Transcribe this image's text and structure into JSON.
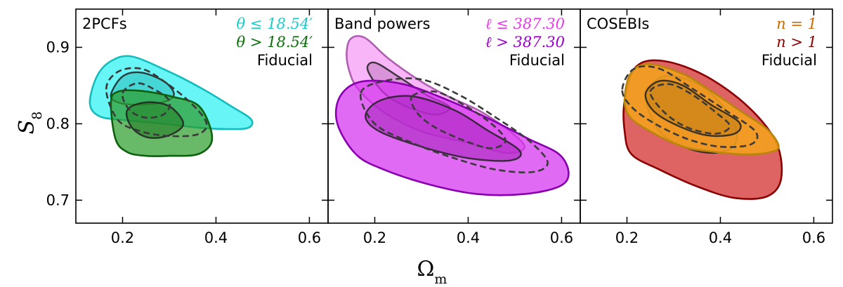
{
  "chart_data": {
    "type": "contour",
    "xlabel": "Ω",
    "xlabel_sub": "m",
    "ylabel": "S",
    "ylabel_sub": "8",
    "xlim": [
      0.1,
      0.64
    ],
    "ylim": [
      0.67,
      0.95
    ],
    "xticks": [
      0.2,
      0.4,
      0.6
    ],
    "xtick_labels": [
      "0.2",
      "0.4",
      "0.6"
    ],
    "yticks": [
      0.7,
      0.8,
      0.9
    ],
    "ytick_labels": [
      "0.7",
      "0.8",
      "0.9"
    ],
    "panels": [
      {
        "title": "2PCFs",
        "legend": [
          {
            "label": "θ ≤ 18.54′",
            "color": "#1bc9c9"
          },
          {
            "label": "θ > 18.54′",
            "color": "#0b6e0b"
          },
          {
            "label": "Fiducial",
            "color": "#000000"
          }
        ],
        "contours": [
          {
            "name": "theta-le-18.54",
            "fill": "#3ef2f2",
            "edge": "#15bcbc",
            "fill_opacity": 0.78,
            "outer": [
              [
                0.13,
                0.827
              ],
              [
                0.145,
                0.862
              ],
              [
                0.175,
                0.882
              ],
              [
                0.22,
                0.888
              ],
              [
                0.3,
                0.868
              ],
              [
                0.37,
                0.846
              ],
              [
                0.435,
                0.822
              ],
              [
                0.475,
                0.806
              ],
              [
                0.47,
                0.795
              ],
              [
                0.43,
                0.793
              ],
              [
                0.36,
                0.795
              ],
              [
                0.29,
                0.8
              ],
              [
                0.2,
                0.805
              ],
              [
                0.15,
                0.81
              ]
            ],
            "inner": [
              [
                0.175,
                0.838
              ],
              [
                0.2,
                0.862
              ],
              [
                0.24,
                0.867
              ],
              [
                0.29,
                0.855
              ],
              [
                0.31,
                0.838
              ],
              [
                0.285,
                0.828
              ],
              [
                0.23,
                0.825
              ],
              [
                0.19,
                0.828
              ]
            ]
          },
          {
            "name": "theta-gt-18.54",
            "fill": "#2e9e2e",
            "edge": "#0d600d",
            "fill_opacity": 0.72,
            "outer": [
              [
                0.175,
                0.828
              ],
              [
                0.185,
                0.78
              ],
              [
                0.21,
                0.763
              ],
              [
                0.25,
                0.758
              ],
              [
                0.3,
                0.758
              ],
              [
                0.36,
                0.76
              ],
              [
                0.39,
                0.775
              ],
              [
                0.385,
                0.8
              ],
              [
                0.36,
                0.825
              ],
              [
                0.31,
                0.835
              ],
              [
                0.24,
                0.843
              ],
              [
                0.19,
                0.842
              ]
            ],
            "inner": [
              [
                0.21,
                0.818
              ],
              [
                0.22,
                0.795
              ],
              [
                0.255,
                0.782
              ],
              [
                0.3,
                0.785
              ],
              [
                0.33,
                0.8
              ],
              [
                0.3,
                0.823
              ],
              [
                0.25,
                0.828
              ]
            ]
          }
        ],
        "fiducial": {
          "outer": [
            [
              0.165,
              0.845
            ],
            [
              0.19,
              0.868
            ],
            [
              0.24,
              0.872
            ],
            [
              0.29,
              0.855
            ],
            [
              0.35,
              0.825
            ],
            [
              0.38,
              0.8
            ],
            [
              0.36,
              0.786
            ],
            [
              0.3,
              0.784
            ],
            [
              0.24,
              0.79
            ],
            [
              0.19,
              0.805
            ]
          ],
          "inner": [
            [
              0.2,
              0.84
            ],
            [
              0.23,
              0.853
            ],
            [
              0.265,
              0.846
            ],
            [
              0.3,
              0.83
            ],
            [
              0.29,
              0.813
            ],
            [
              0.25,
              0.808
            ],
            [
              0.215,
              0.818
            ]
          ]
        }
      },
      {
        "title": "Band powers",
        "legend": [
          {
            "label": "ℓ ≤ 387.30",
            "color": "#e83be8"
          },
          {
            "label": "ℓ > 387.30",
            "color": "#9a00cc"
          },
          {
            "label": "Fiducial",
            "color": "#000000"
          }
        ],
        "contours": [
          {
            "name": "ell-le-387.30",
            "fill": "#f59cf5",
            "edge": "#b060b0",
            "fill_opacity": 0.75,
            "outer": [
              [
                0.14,
                0.895
              ],
              [
                0.15,
                0.912
              ],
              [
                0.18,
                0.912
              ],
              [
                0.23,
                0.885
              ],
              [
                0.3,
                0.855
              ],
              [
                0.36,
                0.835
              ],
              [
                0.43,
                0.815
              ],
              [
                0.5,
                0.785
              ],
              [
                0.52,
                0.768
              ],
              [
                0.48,
                0.762
              ],
              [
                0.4,
                0.775
              ],
              [
                0.3,
                0.79
              ],
              [
                0.22,
                0.815
              ],
              [
                0.165,
                0.845
              ],
              [
                0.145,
                0.87
              ]
            ],
            "inner": [
              [
                0.185,
                0.87
              ],
              [
                0.2,
                0.88
              ],
              [
                0.25,
                0.862
              ],
              [
                0.31,
                0.838
              ],
              [
                0.36,
                0.822
              ],
              [
                0.33,
                0.812
              ],
              [
                0.27,
                0.822
              ],
              [
                0.22,
                0.84
              ]
            ]
          },
          {
            "name": "ell-gt-387.30",
            "fill": "#d630f0",
            "edge": "#8a00b0",
            "fill_opacity": 0.72,
            "outer": [
              [
                0.12,
                0.8
              ],
              [
                0.125,
                0.835
              ],
              [
                0.17,
                0.855
              ],
              [
                0.26,
                0.852
              ],
              [
                0.36,
                0.83
              ],
              [
                0.45,
                0.805
              ],
              [
                0.53,
                0.78
              ],
              [
                0.595,
                0.76
              ],
              [
                0.615,
                0.735
              ],
              [
                0.595,
                0.718
              ],
              [
                0.52,
                0.708
              ],
              [
                0.42,
                0.708
              ],
              [
                0.32,
                0.72
              ],
              [
                0.22,
                0.74
              ],
              [
                0.16,
                0.76
              ]
            ],
            "inner": [
              [
                0.18,
                0.81
              ],
              [
                0.21,
                0.83
              ],
              [
                0.28,
                0.836
              ],
              [
                0.37,
                0.818
              ],
              [
                0.44,
                0.792
              ],
              [
                0.51,
                0.765
              ],
              [
                0.49,
                0.752
              ],
              [
                0.4,
                0.755
              ],
              [
                0.3,
                0.77
              ],
              [
                0.21,
                0.79
              ]
            ]
          }
        ],
        "fiducial": {
          "outer": [
            [
              0.17,
              0.84
            ],
            [
              0.22,
              0.856
            ],
            [
              0.3,
              0.858
            ],
            [
              0.38,
              0.838
            ],
            [
              0.46,
              0.808
            ],
            [
              0.53,
              0.778
            ],
            [
              0.57,
              0.75
            ],
            [
              0.54,
              0.737
            ],
            [
              0.46,
              0.74
            ],
            [
              0.37,
              0.755
            ],
            [
              0.28,
              0.775
            ],
            [
              0.2,
              0.8
            ]
          ],
          "inner": [
            [
              0.28,
              0.836
            ],
            [
              0.33,
              0.842
            ],
            [
              0.39,
              0.825
            ],
            [
              0.45,
              0.8
            ],
            [
              0.48,
              0.778
            ],
            [
              0.45,
              0.768
            ],
            [
              0.4,
              0.776
            ],
            [
              0.33,
              0.795
            ],
            [
              0.29,
              0.815
            ]
          ]
        }
      },
      {
        "title": "COSEBIs",
        "legend": [
          {
            "label": "n = 1",
            "color": "#cc6a00"
          },
          {
            "label": "n > 1",
            "color": "#8b0000"
          },
          {
            "label": "Fiducial",
            "color": "#000000"
          }
        ],
        "contours": [
          {
            "name": "n-gt-1",
            "fill": "#d84848",
            "edge": "#8b0000",
            "fill_opacity": 0.85,
            "outer": [
              [
                0.195,
                0.83
              ],
              [
                0.22,
                0.875
              ],
              [
                0.28,
                0.882
              ],
              [
                0.37,
                0.862
              ],
              [
                0.46,
                0.822
              ],
              [
                0.52,
                0.775
              ],
              [
                0.53,
                0.728
              ],
              [
                0.5,
                0.705
              ],
              [
                0.43,
                0.703
              ],
              [
                0.35,
                0.718
              ],
              [
                0.27,
                0.74
              ],
              [
                0.21,
                0.76
              ],
              [
                0.195,
                0.79
              ]
            ],
            "inner": [
              [
                0.24,
                0.835
              ],
              [
                0.27,
                0.86
              ],
              [
                0.32,
                0.86
              ],
              [
                0.38,
                0.84
              ],
              [
                0.43,
                0.8
              ],
              [
                0.43,
                0.772
              ],
              [
                0.39,
                0.762
              ],
              [
                0.33,
                0.768
              ],
              [
                0.27,
                0.79
              ]
            ]
          },
          {
            "name": "n-eq-1",
            "fill": "#f5a21e",
            "edge": "#b8860b",
            "fill_opacity": 0.88,
            "outer": [
              [
                0.195,
                0.835
              ],
              [
                0.21,
                0.868
              ],
              [
                0.25,
                0.878
              ],
              [
                0.32,
                0.865
              ],
              [
                0.38,
                0.843
              ],
              [
                0.44,
                0.818
              ],
              [
                0.5,
                0.793
              ],
              [
                0.525,
                0.77
              ],
              [
                0.5,
                0.762
              ],
              [
                0.45,
                0.76
              ],
              [
                0.39,
                0.763
              ],
              [
                0.32,
                0.77
              ],
              [
                0.25,
                0.79
              ],
              [
                0.205,
                0.81
              ]
            ],
            "inner": [
              [
                0.24,
                0.84
              ],
              [
                0.27,
                0.856
              ],
              [
                0.32,
                0.85
              ],
              [
                0.38,
                0.825
              ],
              [
                0.44,
                0.802
              ],
              [
                0.43,
                0.787
              ],
              [
                0.37,
                0.785
              ],
              [
                0.3,
                0.8
              ],
              [
                0.255,
                0.818
              ]
            ]
          }
        ],
        "fiducial": {
          "outer": [
            [
              0.19,
              0.845
            ],
            [
              0.215,
              0.872
            ],
            [
              0.27,
              0.872
            ],
            [
              0.34,
              0.846
            ],
            [
              0.41,
              0.818
            ],
            [
              0.475,
              0.79
            ],
            [
              0.465,
              0.773
            ],
            [
              0.4,
              0.77
            ],
            [
              0.33,
              0.78
            ],
            [
              0.26,
              0.8
            ],
            [
              0.21,
              0.822
            ]
          ],
          "inner": [
            [
              0.25,
              0.842
            ],
            [
              0.29,
              0.852
            ],
            [
              0.34,
              0.838
            ],
            [
              0.39,
              0.815
            ],
            [
              0.42,
              0.797
            ],
            [
              0.39,
              0.787
            ],
            [
              0.33,
              0.795
            ],
            [
              0.28,
              0.815
            ]
          ]
        }
      }
    ]
  }
}
